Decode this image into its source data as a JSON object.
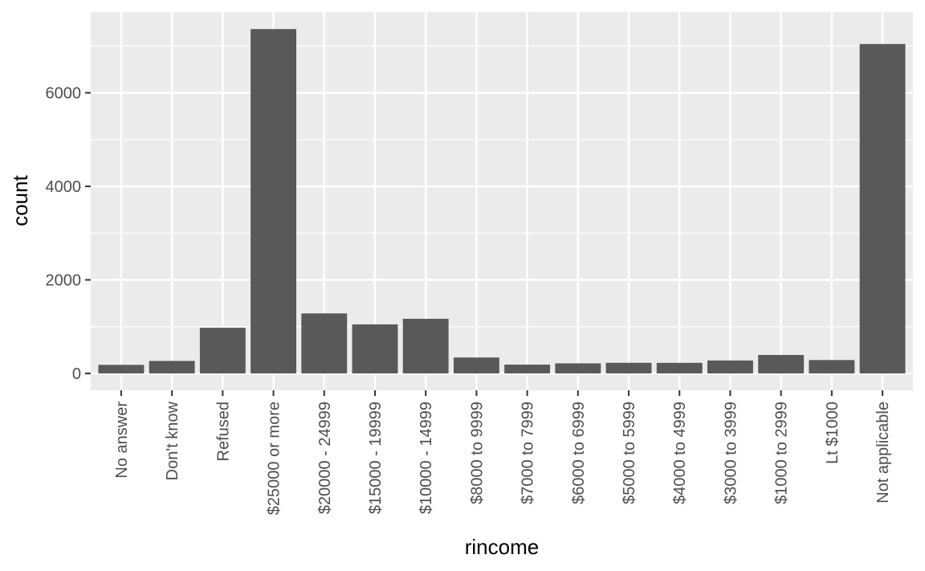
{
  "chart_data": {
    "type": "bar",
    "xlabel": "rincome",
    "ylabel": "count",
    "categories": [
      "No answer",
      "Don't know",
      "Refused",
      "$25000 or more",
      "$20000 - 24999",
      "$15000 - 19999",
      "$10000 - 14999",
      "$8000 to 9999",
      "$7000 to 7999",
      "$6000 to 6999",
      "$5000 to 5999",
      "$4000 to 4999",
      "$3000 to 3999",
      "$1000 to 2999",
      "Lt $1000",
      "Not applicable"
    ],
    "values": [
      183,
      267,
      975,
      7363,
      1283,
      1048,
      1168,
      340,
      188,
      215,
      227,
      226,
      276,
      395,
      286,
      7043
    ],
    "ylim": [
      -361,
      7727
    ],
    "yticks": [
      0,
      2000,
      4000,
      6000
    ],
    "ytick_labels": [
      "0",
      "2000",
      "4000",
      "6000"
    ],
    "grid": true,
    "colors": {
      "panel": "#ebebeb",
      "bar": "#595959",
      "grid": "#ffffff",
      "ticks": "#333333"
    }
  }
}
